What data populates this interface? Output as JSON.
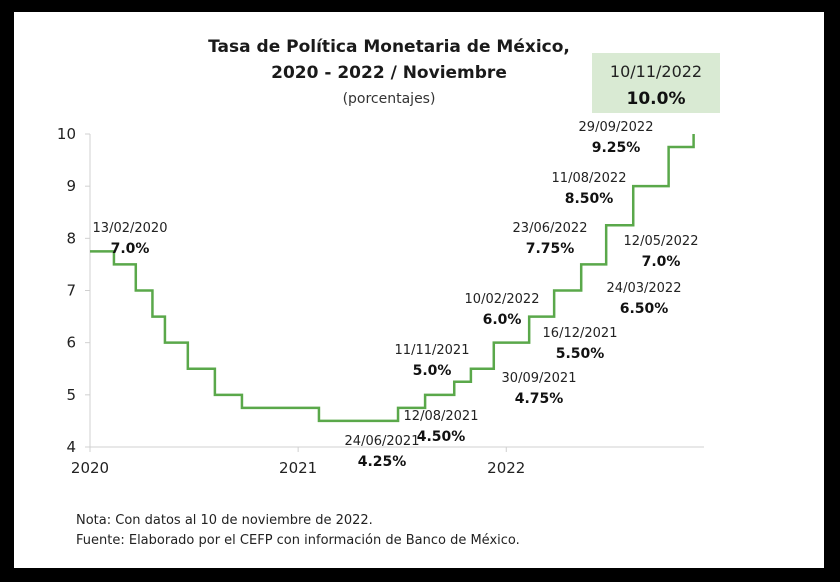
{
  "chart_data": {
    "type": "line",
    "title": "Tasa de Política Monetaria de México,",
    "title_line2": "2020 - 2022 / Noviembre",
    "subtitle": "(porcentajes)",
    "xlabel": "",
    "ylabel": "",
    "ylim": [
      4,
      10
    ],
    "xlim": [
      2020.0,
      2022.95
    ],
    "yticks": [
      "4",
      "5",
      "6",
      "7",
      "8",
      "9",
      "10"
    ],
    "xticks": [
      "2020",
      "2021",
      "2022"
    ],
    "grid": false,
    "line_color": "#5aa84a",
    "series": [
      {
        "step": "post",
        "x": [
          2020.0,
          2020.115,
          2020.22,
          2020.3,
          2020.36,
          2020.47,
          2020.6,
          2020.73,
          2021.1,
          2021.48,
          2021.61,
          2021.75,
          2021.83,
          2021.94,
          2022.11,
          2022.23,
          2022.36,
          2022.48,
          2022.61,
          2022.78,
          2022.86,
          2022.9
        ],
        "y": [
          7.75,
          7.5,
          7.0,
          6.5,
          6.0,
          5.5,
          5.0,
          4.75,
          4.5,
          4.75,
          5.0,
          5.25,
          5.5,
          6.0,
          6.5,
          7.0,
          7.5,
          8.25,
          9.0,
          9.75,
          9.75,
          10.0
        ]
      }
    ],
    "annotations": [
      {
        "date": "13/02/2020",
        "value": "7.0%"
      },
      {
        "date": "24/06/2021",
        "value": "4.25%"
      },
      {
        "date": "12/08/2021",
        "value": "4.50%"
      },
      {
        "date": "30/09/2021",
        "value": "4.75%"
      },
      {
        "date": "11/11/2021",
        "value": "5.0%"
      },
      {
        "date": "16/12/2021",
        "value": "5.50%"
      },
      {
        "date": "10/02/2022",
        "value": "6.0%"
      },
      {
        "date": "24/03/2022",
        "value": "6.50%"
      },
      {
        "date": "12/05/2022",
        "value": "7.0%"
      },
      {
        "date": "23/06/2022",
        "value": "7.75%"
      },
      {
        "date": "11/08/2022",
        "value": "8.50%"
      },
      {
        "date": "29/09/2022",
        "value": "9.25%"
      }
    ],
    "highlight": {
      "date": "10/11/2022",
      "value": "10.0%",
      "color": "#d9ead3"
    }
  },
  "notes": {
    "line1": "Nota: Con datos al 10 de noviembre de 2022.",
    "line2": "Fuente: Elaborado por el CEFP con información de Banco de México."
  }
}
